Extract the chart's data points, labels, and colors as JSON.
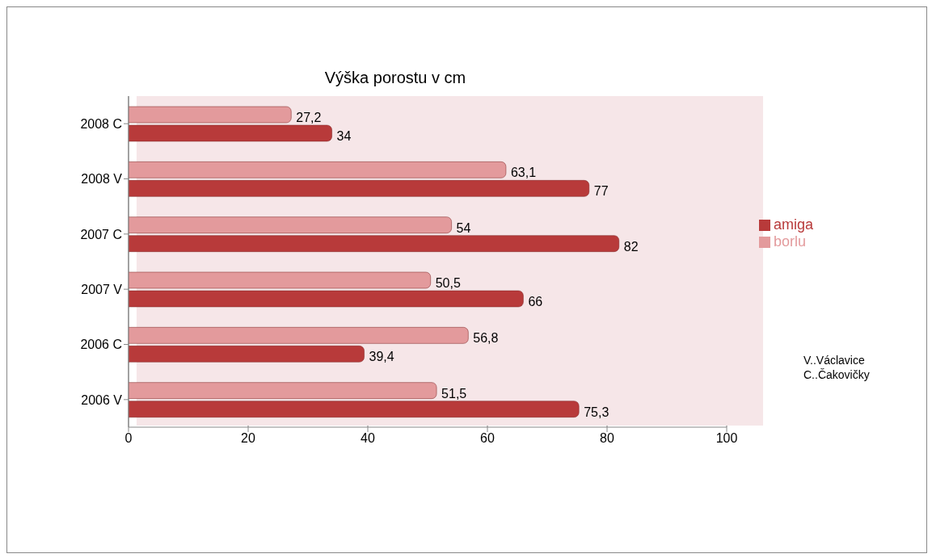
{
  "chart_data": {
    "type": "bar",
    "orientation": "horizontal",
    "title": "Výška porostu v cm",
    "categories": [
      "2008 C",
      "2008 V",
      "2007 C",
      "2007 V",
      "2006 C",
      "2006 V"
    ],
    "series": [
      {
        "name": "borlu",
        "color": "#e39a9c",
        "values": [
          27.2,
          63.1,
          54,
          50.5,
          56.8,
          51.5
        ],
        "value_labels": [
          "27,2",
          "63,1",
          "54",
          "50,5",
          "56,8",
          "51,5"
        ]
      },
      {
        "name": "amiga",
        "color": "#b83a3a",
        "values": [
          34,
          77,
          82,
          66,
          39.4,
          75.3
        ],
        "value_labels": [
          "34",
          "77",
          "82",
          "66",
          "39,4",
          "75,3"
        ]
      }
    ],
    "xlim": [
      0,
      100
    ],
    "xticks": [
      0,
      20,
      40,
      60,
      80,
      100
    ],
    "grid": "x",
    "legend": "right",
    "annotations": [
      "V..Václavice",
      "C..Čakovičky"
    ]
  }
}
